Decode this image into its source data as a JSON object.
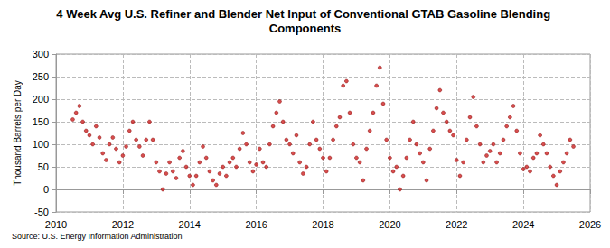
{
  "chart_data": {
    "type": "scatter",
    "title": "4 Week Avg U.S. Refiner and Blender Net Input of Conventional GTAB Gasoline Blending Components",
    "y_label": "Thousand Barrels per Day",
    "source": "Source: U.S. Energy Information Administration",
    "color": "#cc2222",
    "marker": "circle",
    "grid": true,
    "xlim": [
      2010,
      2026
    ],
    "xticks": [
      2010,
      2012,
      2014,
      2016,
      2018,
      2020,
      2022,
      2024,
      2026
    ],
    "ylim": [
      -50,
      300
    ],
    "yticks": [
      -50,
      0,
      50,
      100,
      150,
      200,
      250,
      300
    ],
    "x": [
      2010.5,
      2010.6,
      2010.7,
      2010.8,
      2010.9,
      2011.0,
      2011.1,
      2011.2,
      2011.3,
      2011.4,
      2011.5,
      2011.6,
      2011.7,
      2011.8,
      2011.9,
      2012.0,
      2012.1,
      2012.2,
      2012.3,
      2012.4,
      2012.5,
      2012.6,
      2012.7,
      2012.8,
      2012.9,
      2013.0,
      2013.1,
      2013.2,
      2013.3,
      2013.4,
      2013.5,
      2013.6,
      2013.7,
      2013.8,
      2013.9,
      2014.0,
      2014.1,
      2014.2,
      2014.3,
      2014.4,
      2014.5,
      2014.6,
      2014.7,
      2014.8,
      2014.9,
      2015.0,
      2015.1,
      2015.2,
      2015.3,
      2015.4,
      2015.5,
      2015.6,
      2015.7,
      2015.8,
      2015.9,
      2016.0,
      2016.1,
      2016.2,
      2016.3,
      2016.4,
      2016.5,
      2016.6,
      2016.7,
      2016.8,
      2016.9,
      2017.0,
      2017.1,
      2017.2,
      2017.3,
      2017.4,
      2017.5,
      2017.6,
      2017.7,
      2017.8,
      2017.9,
      2018.0,
      2018.1,
      2018.2,
      2018.3,
      2018.4,
      2018.5,
      2018.6,
      2018.7,
      2018.8,
      2018.9,
      2019.0,
      2019.1,
      2019.2,
      2019.3,
      2019.4,
      2019.5,
      2019.6,
      2019.7,
      2019.8,
      2019.9,
      2020.0,
      2020.1,
      2020.2,
      2020.3,
      2020.4,
      2020.5,
      2020.6,
      2020.7,
      2020.8,
      2020.9,
      2021.0,
      2021.1,
      2021.2,
      2021.3,
      2021.4,
      2021.5,
      2021.6,
      2021.7,
      2021.8,
      2021.9,
      2022.0,
      2022.1,
      2022.2,
      2022.3,
      2022.4,
      2022.5,
      2022.6,
      2022.7,
      2022.8,
      2022.9,
      2023.0,
      2023.1,
      2023.2,
      2023.3,
      2023.4,
      2023.5,
      2023.6,
      2023.7,
      2023.8,
      2023.9,
      2024.0,
      2024.1,
      2024.2,
      2024.3,
      2024.4,
      2024.5,
      2024.6,
      2024.7,
      2024.8,
      2024.9,
      2025.0,
      2025.1,
      2025.2,
      2025.3,
      2025.4,
      2025.5
    ],
    "values": [
      155,
      170,
      185,
      150,
      130,
      120,
      100,
      140,
      115,
      80,
      65,
      100,
      115,
      90,
      60,
      75,
      95,
      130,
      150,
      110,
      95,
      75,
      110,
      150,
      110,
      60,
      40,
      0,
      35,
      60,
      40,
      25,
      70,
      85,
      50,
      30,
      10,
      30,
      60,
      95,
      70,
      40,
      20,
      10,
      35,
      50,
      30,
      60,
      70,
      50,
      90,
      125,
      100,
      60,
      40,
      55,
      90,
      60,
      50,
      100,
      140,
      170,
      195,
      150,
      110,
      100,
      80,
      120,
      60,
      35,
      50,
      100,
      150,
      110,
      90,
      70,
      40,
      70,
      110,
      140,
      160,
      230,
      240,
      170,
      100,
      70,
      60,
      20,
      90,
      130,
      170,
      230,
      270,
      190,
      110,
      70,
      40,
      50,
      0,
      30,
      70,
      110,
      150,
      100,
      80,
      60,
      20,
      90,
      130,
      180,
      220,
      170,
      150,
      130,
      120,
      65,
      30,
      60,
      110,
      160,
      205,
      140,
      100,
      60,
      75,
      85,
      100,
      60,
      80,
      110,
      140,
      160,
      185,
      130,
      80,
      45,
      50,
      40,
      70,
      80,
      120,
      100,
      80,
      50,
      30,
      10,
      40,
      60,
      80,
      110,
      95
    ]
  }
}
